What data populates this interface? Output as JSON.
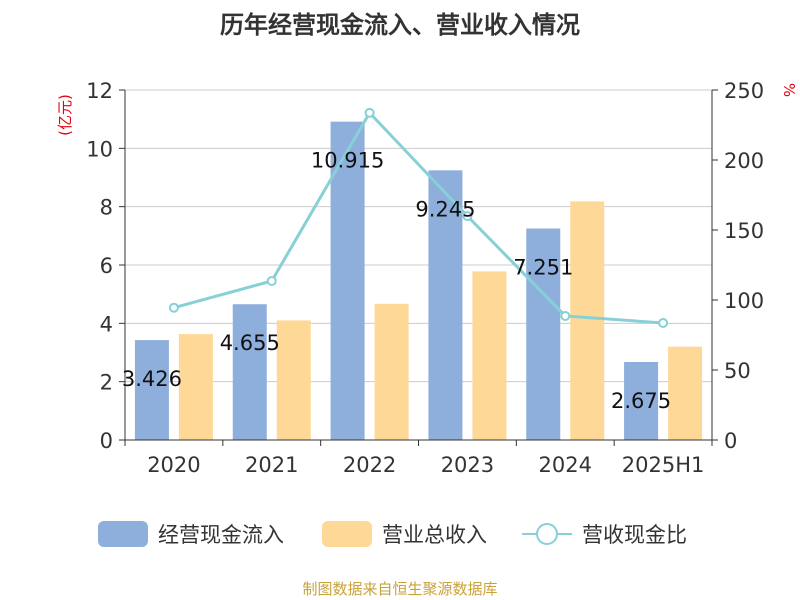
{
  "chart_data": {
    "type": "bar",
    "title": "历年经营现金流入、营业收入情况",
    "categories": [
      "2020",
      "2021",
      "2022",
      "2023",
      "2024",
      "2025H1"
    ],
    "series": [
      {
        "name": "经营现金流入",
        "type": "bar",
        "axis": "left",
        "color": "#8eaedb",
        "values": [
          3.426,
          4.655,
          10.915,
          9.245,
          7.251,
          2.675
        ],
        "labels": [
          "3.426",
          "4.655",
          "10.915",
          "9.245",
          "7.251",
          "2.675"
        ]
      },
      {
        "name": "营业总收入",
        "type": "bar",
        "axis": "left",
        "color": "#fed897",
        "values": [
          3.63,
          4.1,
          4.67,
          5.78,
          8.18,
          3.2
        ]
      },
      {
        "name": "营收现金比",
        "type": "line",
        "axis": "right",
        "color": "#87d0d7",
        "values": [
          94.5,
          113.6,
          233.7,
          159.9,
          88.6,
          83.6
        ]
      }
    ],
    "y_left": {
      "unit": "(亿元)",
      "min": 0,
      "max": 12,
      "ticks": [
        "0",
        "2",
        "4",
        "6",
        "8",
        "10",
        "12"
      ]
    },
    "y_right": {
      "unit": "%",
      "min": 0,
      "max": 250,
      "ticks": [
        "0",
        "50",
        "100",
        "150",
        "200",
        "250"
      ]
    },
    "grid": true,
    "legend_position": "bottom"
  },
  "source": "制图数据来自恒生聚源数据库",
  "colors": {
    "axis": "#333333",
    "grid": "#cccccc",
    "unit": "#e60012",
    "source": "#c9a23a"
  }
}
